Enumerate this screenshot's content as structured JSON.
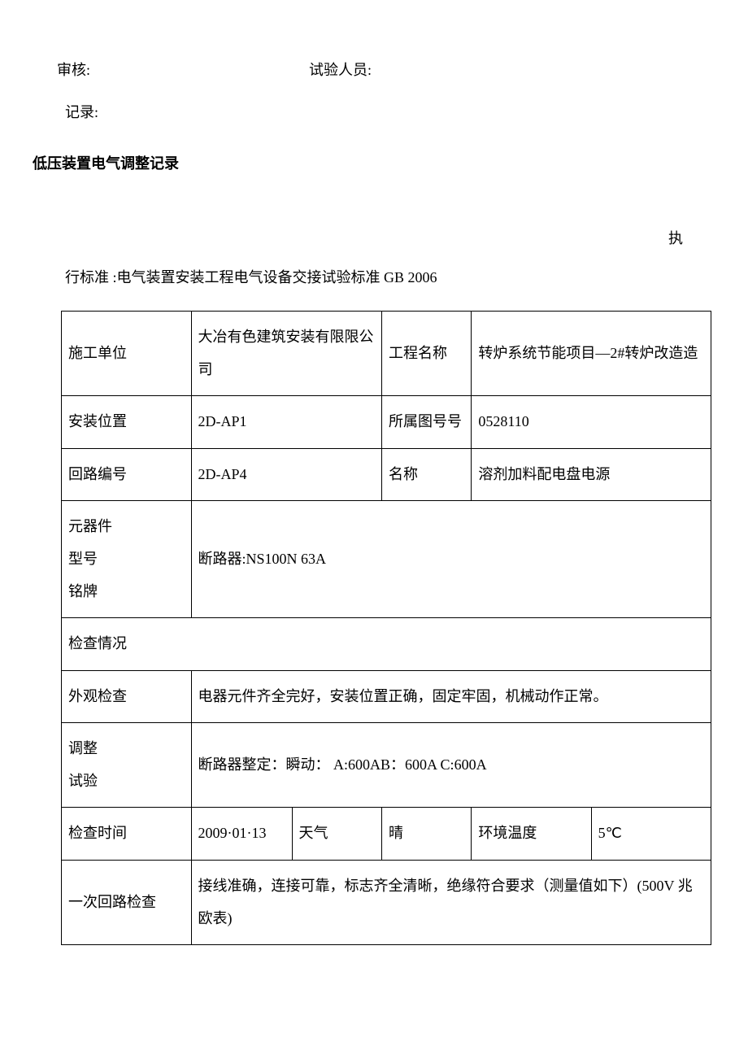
{
  "header": {
    "audit_label": "审核:",
    "tester_label": "试验人员:",
    "record_label": "记录:"
  },
  "title": "低压装置电气调整记录",
  "standard": {
    "zhi": "执",
    "text": "行标准 :电气装置安装工程电气设备交接试验标准 GB   2006"
  },
  "table": {
    "row1": {
      "label1": "施工单位",
      "value1": "大冶有色建筑安装有限限公司",
      "label2": "工程名称",
      "value2": "转炉系统节能项目—2#转炉改造造"
    },
    "row2": {
      "label1": "安装位置",
      "value1": "2D-AP1",
      "label2": "所属图号号",
      "value2": "0528110"
    },
    "row3": {
      "label1": "回路编号",
      "value1": "2D-AP4",
      "label2": "名称",
      "value2": "溶剂加料配电盘电源"
    },
    "row4": {
      "label": "元器件\n型号\n铭牌",
      "value": "断路器:NS100N    63A"
    },
    "row5": {
      "label": "检查情况"
    },
    "row6": {
      "label": "外观检查",
      "value": "电器元件齐全完好，安装位置正确，固定牢固，机械动作正常。"
    },
    "row7": {
      "label": "调整\n试验",
      "value": "断路器整定：瞬动：   A:600AB：600A C:600A"
    },
    "row8": {
      "label1": "检查时间",
      "value1": "2009·01·13",
      "label2": "天气",
      "value2": "晴",
      "label3": "环境温度",
      "value3": "5℃"
    },
    "row9": {
      "label": "一次回路检查",
      "value": "接线准确，连接可靠，标志齐全清晰，绝缘符合要求（测量值如下）(500V 兆欧表)"
    }
  }
}
